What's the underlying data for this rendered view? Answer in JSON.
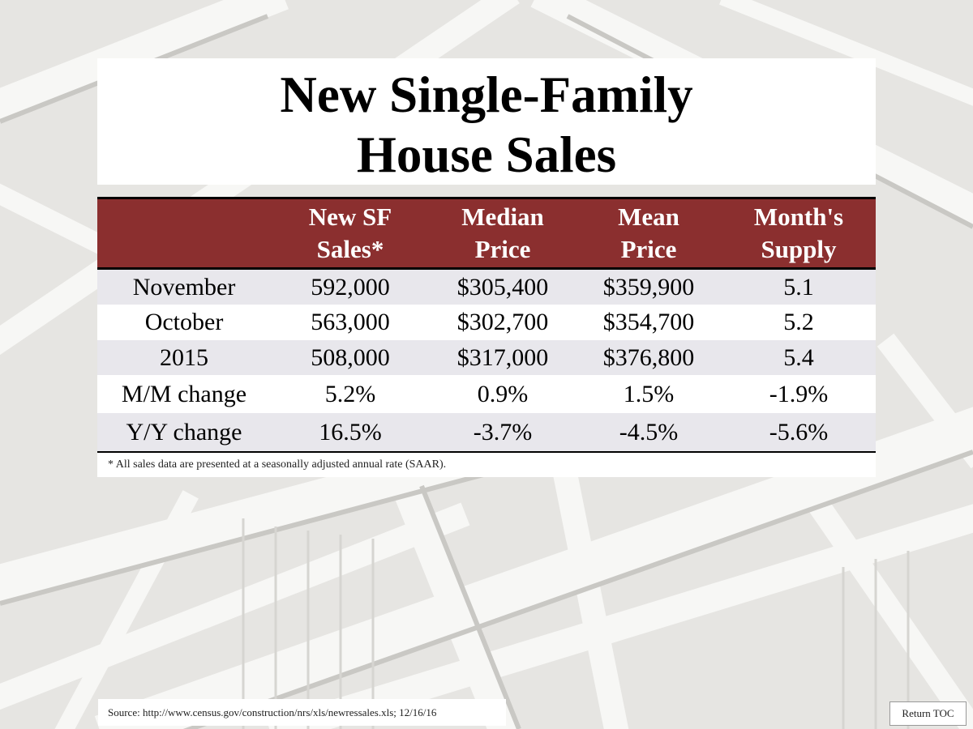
{
  "title": {
    "line1": "New Single-Family",
    "line2": "House Sales"
  },
  "table": {
    "headers": [
      {
        "line1": "",
        "line2": ""
      },
      {
        "line1": "New SF",
        "line2": "Sales*"
      },
      {
        "line1": "Median",
        "line2": "Price"
      },
      {
        "line1": "Mean",
        "line2": "Price"
      },
      {
        "line1": "Month's",
        "line2": "Supply"
      }
    ],
    "rows": [
      {
        "label": "November",
        "sales": "592,000",
        "median": "$305,400",
        "mean": "$359,900",
        "supply": "5.1"
      },
      {
        "label": "October",
        "sales": "563,000",
        "median": "$302,700",
        "mean": "$354,700",
        "supply": "5.2"
      },
      {
        "label": "2015",
        "sales": "508,000",
        "median": "$317,000",
        "mean": "$376,800",
        "supply": "5.4"
      },
      {
        "label": "M/M change",
        "sales": "5.2%",
        "median": "0.9%",
        "mean": "1.5%",
        "supply": "-1.9%"
      },
      {
        "label": "Y/Y change",
        "sales": "16.5%",
        "median": "-3.7%",
        "mean": "-4.5%",
        "supply": "-5.6%"
      }
    ]
  },
  "footnote": "* All sales data are presented at a seasonally adjusted annual rate (SAAR).",
  "source": "Source: http://www.census.gov/construction/nrs/xls/newressales.xls; 12/16/16",
  "toc_label": "Return TOC",
  "colors": {
    "header_bg": "#8b2f2f",
    "shaded_row": "#e8e7ec"
  }
}
